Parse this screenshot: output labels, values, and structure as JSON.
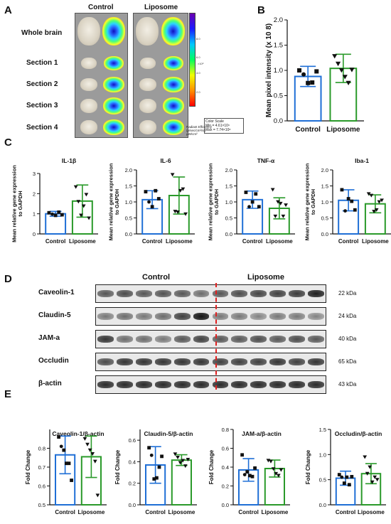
{
  "panels": {
    "a": "A",
    "b": "B",
    "c": "C",
    "d": "D",
    "e": "E"
  },
  "imaging": {
    "col_control": "Control",
    "col_liposome": "Liposome",
    "rows": [
      "Whole brain",
      "Section 1",
      "Section 2",
      "Section 3",
      "Section 4"
    ],
    "colorbar_ticks": [
      "8.0",
      "6.0",
      "4.0",
      "2.0"
    ],
    "colorbar_exp": "×10⁸",
    "scale_title": "Color Scale",
    "scale_min": "Min = 4.61×10⁶",
    "scale_max": "Max = 7.74×10⁸",
    "scale_units_1": "Radiant Efficiency",
    "scale_units_2": "(p/sec/cm²/sr)",
    "scale_units_3": "μW/cm²"
  },
  "colors": {
    "control": "#1f6fd6",
    "liposome": "#2a9a2a",
    "divider": "#e02020"
  },
  "western": {
    "cond_control": "Control",
    "cond_liposome": "Liposome",
    "proteins": [
      "Caveolin-1",
      "Claudin-5",
      "JAM-a",
      "Occludin",
      "β-actin"
    ],
    "kda": [
      "22 kDa",
      "24 kDa",
      "40 kDa",
      "65 kDa",
      "43 kDa"
    ],
    "band_intensity": [
      [
        0.7,
        0.75,
        0.7,
        0.72,
        0.7,
        0.6,
        0.7,
        0.75,
        0.78,
        0.8,
        0.82,
        0.95
      ],
      [
        0.55,
        0.6,
        0.55,
        0.6,
        0.8,
        1.0,
        0.55,
        0.55,
        0.5,
        0.55,
        0.55,
        0.5
      ],
      [
        0.85,
        0.6,
        0.6,
        0.55,
        0.7,
        0.8,
        0.7,
        0.7,
        0.75,
        0.7,
        0.75,
        0.7
      ],
      [
        0.75,
        0.85,
        0.85,
        0.85,
        0.85,
        0.85,
        0.8,
        0.8,
        0.8,
        0.85,
        0.8,
        0.85
      ],
      [
        0.9,
        0.9,
        0.9,
        0.9,
        0.9,
        0.9,
        0.9,
        0.9,
        0.9,
        0.9,
        0.9,
        0.9
      ]
    ]
  },
  "chart_data": [
    {
      "id": "B",
      "type": "bar",
      "categories": [
        "Control",
        "Liposome"
      ],
      "values": [
        0.88,
        1.04
      ],
      "errors": [
        0.2,
        0.28
      ],
      "points": [
        [
          1.0,
          0.92,
          0.75,
          0.76,
          0.98
        ],
        [
          1.28,
          1.13,
          1.0,
          0.87,
          0.75,
          1.01
        ]
      ],
      "ylabel": "Mean pixel intensity (x 10 8)",
      "ylim": [
        0,
        2.0
      ],
      "yticks": [
        "0.0",
        "0.5",
        "1.0",
        "1.5",
        "2.0"
      ]
    },
    {
      "id": "C1",
      "type": "bar",
      "title": "IL-1β",
      "categories": [
        "Control",
        "Liposome"
      ],
      "values": [
        1.0,
        1.63
      ],
      "errors": [
        0.12,
        0.8
      ],
      "points": [
        [
          1.05,
          0.98,
          0.92,
          1.08,
          0.95
        ],
        [
          2.33,
          1.6,
          0.92,
          1.38,
          1.95,
          0.78
        ]
      ],
      "ylabel": "Mean relative gene expression to GAPDH",
      "ylim": [
        0,
        3
      ],
      "yticks": [
        "0",
        "1",
        "2",
        "3"
      ]
    },
    {
      "id": "C2",
      "type": "bar",
      "title": "IL-6",
      "categories": [
        "Control",
        "Liposome"
      ],
      "values": [
        1.07,
        1.2
      ],
      "errors": [
        0.28,
        0.58
      ],
      "points": [
        [
          1.32,
          1.0,
          0.85,
          1.35,
          1.1
        ],
        [
          1.85,
          0.7,
          0.68,
          1.35,
          1.4,
          0.62
        ]
      ],
      "ylabel": "Mean relative gene expression to GAPDH",
      "ylim": [
        0,
        2.0
      ],
      "yticks": [
        "0.0",
        "0.5",
        "1.0",
        "1.5",
        "2.0"
      ]
    },
    {
      "id": "C3",
      "type": "bar",
      "title": "TNF-α",
      "categories": [
        "Control",
        "Liposome"
      ],
      "values": [
        1.07,
        0.8
      ],
      "errors": [
        0.27,
        0.33
      ],
      "points": [
        [
          1.3,
          0.85,
          1.0,
          1.25,
          0.85
        ],
        [
          1.38,
          0.55,
          1.0,
          0.95,
          0.55,
          0.9
        ]
      ],
      "ylabel": "Mean relative gene expression to GAPDH",
      "ylim": [
        0,
        2.0
      ],
      "yticks": [
        "0.0",
        "0.5",
        "1.0",
        "1.5",
        "2.0"
      ]
    },
    {
      "id": "C4",
      "type": "bar",
      "title": "Iba-1",
      "categories": [
        "Control",
        "Liposome"
      ],
      "values": [
        1.05,
        0.94
      ],
      "errors": [
        0.33,
        0.28
      ],
      "points": [
        [
          1.38,
          0.72,
          1.1,
          1.02,
          0.75
        ],
        [
          1.25,
          1.2,
          0.7,
          0.75,
          1.0,
          1.05
        ]
      ],
      "ylabel": "Mean relative gene expression to GAPDH",
      "ylim": [
        0,
        2.0
      ],
      "yticks": [
        "0.0",
        "0.5",
        "1.0",
        "1.5",
        "2.0"
      ]
    },
    {
      "id": "E1",
      "type": "bar",
      "title": "Caveolin-1/β-actin",
      "categories": [
        "Control",
        "Liposome"
      ],
      "values": [
        0.765,
        0.755
      ],
      "errors": [
        0.1,
        0.11
      ],
      "points": [
        [
          0.86,
          0.81,
          0.79,
          0.72,
          0.72,
          0.63
        ],
        [
          0.85,
          0.82,
          0.79,
          0.77,
          0.73,
          0.55
        ]
      ],
      "ylabel": "Fold Change",
      "ylim": [
        0.5,
        0.9
      ],
      "yticks": [
        "0.5",
        "0.6",
        "0.7",
        "0.8"
      ]
    },
    {
      "id": "E2",
      "type": "bar",
      "title": "Claudin-5/β-actin",
      "categories": [
        "Control",
        "Liposome"
      ],
      "values": [
        0.37,
        0.415
      ],
      "errors": [
        0.17,
        0.05
      ],
      "points": [
        [
          0.53,
          0.46,
          0.24,
          0.25,
          0.35,
          0.45
        ],
        [
          0.47,
          0.44,
          0.39,
          0.41,
          0.36,
          0.42
        ]
      ],
      "ylabel": "Fold Change",
      "ylim": [
        0.0,
        0.7
      ],
      "yticks": [
        "0.0",
        "0.2",
        "0.4",
        "0.6"
      ]
    },
    {
      "id": "E3",
      "type": "bar",
      "title": "JAM-a/β-actin",
      "categories": [
        "Control",
        "Liposome"
      ],
      "values": [
        0.37,
        0.385
      ],
      "errors": [
        0.12,
        0.09
      ],
      "points": [
        [
          0.53,
          0.32,
          0.35,
          0.31,
          0.3,
          0.39
        ],
        [
          0.47,
          0.46,
          0.38,
          0.33,
          0.31,
          0.37
        ]
      ],
      "ylabel": "Fold Change",
      "ylim": [
        0.0,
        0.8
      ],
      "yticks": [
        "0.0",
        "0.2",
        "0.4",
        "0.6",
        "0.8"
      ]
    },
    {
      "id": "E4",
      "type": "bar",
      "title": "Occludin/β-actin",
      "categories": [
        "Control",
        "Liposome"
      ],
      "values": [
        0.53,
        0.62
      ],
      "errors": [
        0.14,
        0.2
      ],
      "points": [
        [
          0.6,
          0.55,
          0.43,
          0.55,
          0.4,
          0.56
        ],
        [
          0.95,
          0.62,
          0.75,
          0.45,
          0.55,
          0.5
        ]
      ],
      "ylabel": "Fold Change",
      "ylim": [
        0.0,
        1.5
      ],
      "yticks": [
        "0.0",
        "0.5",
        "1.0",
        "1.5"
      ]
    }
  ]
}
